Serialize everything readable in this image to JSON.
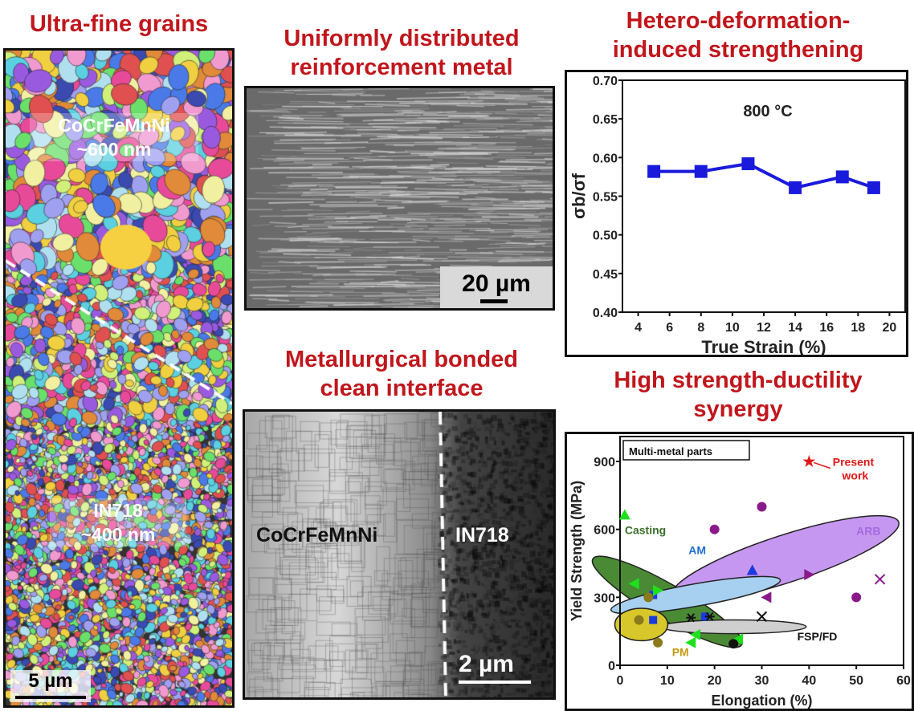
{
  "titles": {
    "grains": "Ultra-fine grains",
    "reinforcement_l1": "Uniformly distributed",
    "reinforcement_l2": "reinforcement metal",
    "hdi_l1": "Hetero-deformation-",
    "hdi_l2": "induced strengthening",
    "interface_l1": "Metallurgical bonded",
    "interface_l2": "clean interface",
    "synergy_l1": "High strength-ductility",
    "synergy_l2": "synergy"
  },
  "ebsd": {
    "top_alloy": "CoCrFeMnNi",
    "top_size": "~600 nm",
    "bottom_alloy": "IN718",
    "bottom_size": "~400 nm",
    "scale": "5 µm"
  },
  "sem": {
    "scale": "20 µm"
  },
  "tem": {
    "left_label": "CoCrFeMnNi",
    "right_label": "IN718",
    "scale": "2 µm"
  },
  "chart_data": [
    {
      "type": "line",
      "annotation": "800 °C",
      "xlabel": "True Strain (%)",
      "ylabel": "σb/σf",
      "xlim": [
        3,
        21
      ],
      "ylim": [
        0.4,
        0.7
      ],
      "xticks": [
        "4",
        "6",
        "8",
        "10",
        "12",
        "14",
        "16",
        "18",
        "20"
      ],
      "yticks": [
        "0.40",
        "0.45",
        "0.50",
        "0.55",
        "0.60",
        "0.65",
        "0.70"
      ],
      "color": "#1a1adc",
      "x": [
        5,
        8,
        11,
        14,
        17,
        19
      ],
      "y": [
        0.582,
        0.582,
        0.592,
        0.561,
        0.575,
        0.561
      ]
    },
    {
      "type": "scatter",
      "legend_box": "Multi-metal parts",
      "xlabel": "Elongation (%)",
      "ylabel": "Yield Strength (MPa)",
      "xlim": [
        0,
        60
      ],
      "ylim": [
        0,
        1010
      ],
      "xticks": [
        "0",
        "10",
        "20",
        "30",
        "40",
        "50",
        "60"
      ],
      "yticks": [
        "0",
        "300",
        "600",
        "900"
      ],
      "regions": [
        {
          "name": "ARB",
          "cx": 35,
          "cy": 470,
          "rx": 18,
          "ry": 190,
          "rot": -18,
          "color": "#c597f0"
        },
        {
          "name": "Casting",
          "cx": 10,
          "cy": 280,
          "rx": 13,
          "ry": 140,
          "rot": 30,
          "color": "#4a8a34"
        },
        {
          "name": "FSP/FD",
          "cx": 24,
          "cy": 170,
          "rx": 11,
          "ry": 55,
          "rot": 0,
          "color": "#cfcfcf"
        },
        {
          "name": "AM",
          "cx": 16,
          "cy": 310,
          "rx": 13,
          "ry": 90,
          "rot": -10,
          "color": "#a7d0f0"
        },
        {
          "name": "PM",
          "cx": 4.5,
          "cy": 180,
          "rx": 4,
          "ry": 130,
          "rot": 0,
          "color": "#d8c72a"
        }
      ],
      "labels": [
        {
          "text": "Casting",
          "x": 1,
          "y": 580,
          "color": "#3c6e2a"
        },
        {
          "text": "AM",
          "x": 14.5,
          "y": 490,
          "color": "#1f6fd0"
        },
        {
          "text": "ARB",
          "x": 50,
          "y": 575,
          "color": "#a56ae0"
        },
        {
          "text": "FSP/FD",
          "x": 37.5,
          "y": 110,
          "color": "#111111"
        },
        {
          "text": "PM",
          "x": 11,
          "y": 40,
          "color": "#c49a12"
        },
        {
          "text": "Present",
          "x": 45,
          "y": 880,
          "color": "#e01818"
        },
        {
          "text": "work",
          "x": 47,
          "y": 820,
          "color": "#e01818"
        }
      ],
      "series": [
        {
          "name": "Present work",
          "marker": "star",
          "color": "#e01818",
          "x": [
            40
          ],
          "y": [
            900
          ]
        },
        {
          "name": "ARB",
          "marker": "hexagon",
          "color": "#8a1a8a",
          "x": [
            20,
            30,
            50
          ],
          "y": [
            600,
            700,
            300
          ]
        },
        {
          "name": "ARB-2",
          "marker": "tri-right",
          "color": "#8a1a8a",
          "x": [
            40
          ],
          "y": [
            400
          ]
        },
        {
          "name": "ARB-3",
          "marker": "tri-left",
          "color": "#8a1a8a",
          "x": [
            31
          ],
          "y": [
            300
          ]
        },
        {
          "name": "ARB-4",
          "marker": "x",
          "color": "#8a1a8a",
          "x": [
            55
          ],
          "y": [
            380
          ]
        },
        {
          "name": "AM",
          "marker": "tri-up",
          "color": "#1a3ae0",
          "x": [
            28
          ],
          "y": [
            420
          ]
        },
        {
          "name": "AM-2",
          "marker": "square",
          "color": "#1a3ae0",
          "x": [
            7,
            18,
            7
          ],
          "y": [
            310,
            215,
            200
          ]
        },
        {
          "name": "Casting",
          "marker": "tri-up",
          "color": "#1ee01e",
          "x": [
            1
          ],
          "y": [
            665
          ]
        },
        {
          "name": "Casting-2",
          "marker": "tri-left",
          "color": "#1ee01e",
          "x": [
            3,
            16,
            15,
            25
          ],
          "y": [
            360,
            135,
            100,
            115
          ]
        },
        {
          "name": "Casting-3",
          "marker": "tri-right",
          "color": "#1ee01e",
          "x": [
            8
          ],
          "y": [
            330
          ]
        },
        {
          "name": "PM",
          "marker": "circle",
          "color": "#8b7a1a",
          "x": [
            6,
            4,
            8
          ],
          "y": [
            300,
            200,
            100
          ]
        },
        {
          "name": "FSP/FD",
          "marker": "asterisk",
          "color": "#111111",
          "x": [
            15,
            19
          ],
          "y": [
            210,
            215
          ]
        },
        {
          "name": "FSP/FD-2",
          "marker": "x",
          "color": "#111111",
          "x": [
            30
          ],
          "y": [
            215
          ]
        },
        {
          "name": "FSP/FD-3",
          "marker": "circle",
          "color": "#111111",
          "x": [
            24
          ],
          "y": [
            95
          ]
        }
      ]
    }
  ]
}
